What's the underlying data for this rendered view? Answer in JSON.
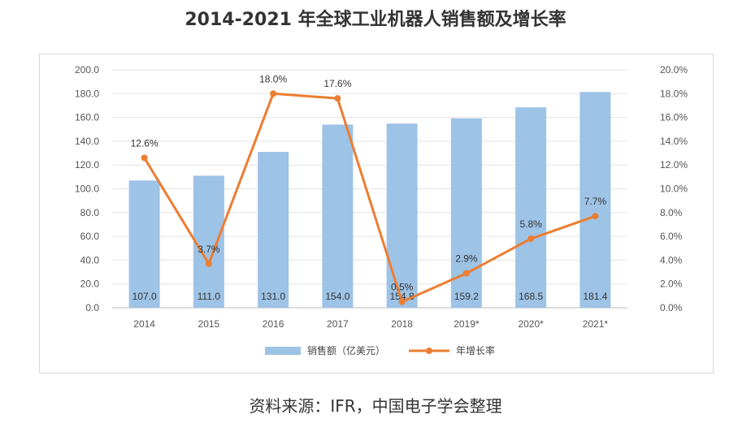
{
  "title": "2014-2021 年全球工业机器人销售额及增长率",
  "source": "资料来源：IFR，中国电子学会整理",
  "chart_data": {
    "type": "bar",
    "categories": [
      "2014",
      "2015",
      "2016",
      "2017",
      "2018",
      "2019*",
      "2020*",
      "2021*"
    ],
    "series": [
      {
        "name": "销售额（亿美元）",
        "type": "bar",
        "axis": "left",
        "values": [
          107.0,
          111.0,
          131.0,
          154.0,
          154.8,
          159.2,
          168.5,
          181.4
        ],
        "labels": [
          "107.0",
          "111.0",
          "131.0",
          "154.0",
          "154.8",
          "159.2",
          "168.5",
          "181.4"
        ],
        "color": "#9dc3e6"
      },
      {
        "name": "年增长率",
        "type": "line",
        "axis": "right",
        "values": [
          12.6,
          3.7,
          18.0,
          17.6,
          0.5,
          2.9,
          5.8,
          7.7
        ],
        "labels": [
          "12.6%",
          "3.7%",
          "18.0%",
          "17.6%",
          "0.5%",
          "2.9%",
          "5.8%",
          "7.7%"
        ],
        "color": "#ed7d31"
      }
    ],
    "left_axis": {
      "ylim": [
        0,
        200
      ],
      "ticks": [
        0,
        20,
        40,
        60,
        80,
        100,
        120,
        140,
        160,
        180,
        200
      ],
      "tick_labels": [
        "0.0",
        "20.0",
        "40.0",
        "60.0",
        "80.0",
        "100.0",
        "120.0",
        "140.0",
        "160.0",
        "180.0",
        "200.0"
      ]
    },
    "right_axis": {
      "ylim": [
        0,
        20
      ],
      "ticks": [
        0,
        2,
        4,
        6,
        8,
        10,
        12,
        14,
        16,
        18,
        20
      ],
      "tick_labels": [
        "0.0%",
        "2.0%",
        "4.0%",
        "6.0%",
        "8.0%",
        "10.0%",
        "12.0%",
        "14.0%",
        "16.0%",
        "18.0%",
        "20.0%"
      ]
    },
    "grid": true,
    "legend": "bottom"
  }
}
